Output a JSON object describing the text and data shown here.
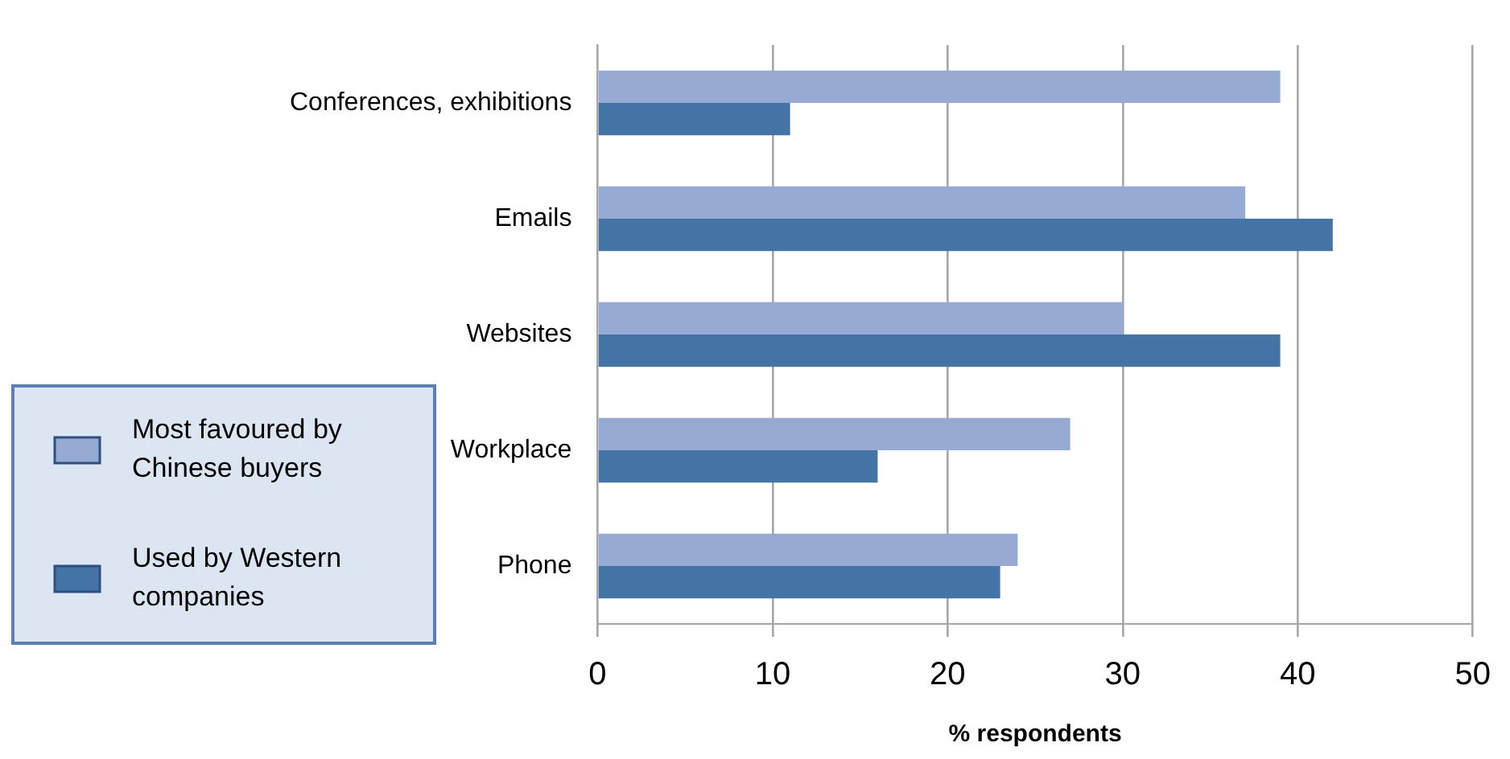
{
  "chart_data": {
    "type": "bar",
    "orientation": "horizontal",
    "xlabel": "% respondents",
    "categories": [
      "Conferences, exhibitions",
      "Emails",
      "Websites",
      "Workplace",
      "Phone"
    ],
    "series": [
      {
        "name": "Most favoured by Chinese buyers",
        "color": "#95abd3",
        "values": [
          39,
          37,
          30,
          27,
          24
        ]
      },
      {
        "name": "Used by Western companies",
        "color": "#4473a6",
        "values": [
          11,
          42,
          39,
          16,
          23
        ]
      }
    ],
    "xlim": [
      0,
      50
    ],
    "xticks": [
      0,
      10,
      20,
      30,
      40,
      50
    ],
    "grid": "x",
    "legend": "bottom left"
  }
}
